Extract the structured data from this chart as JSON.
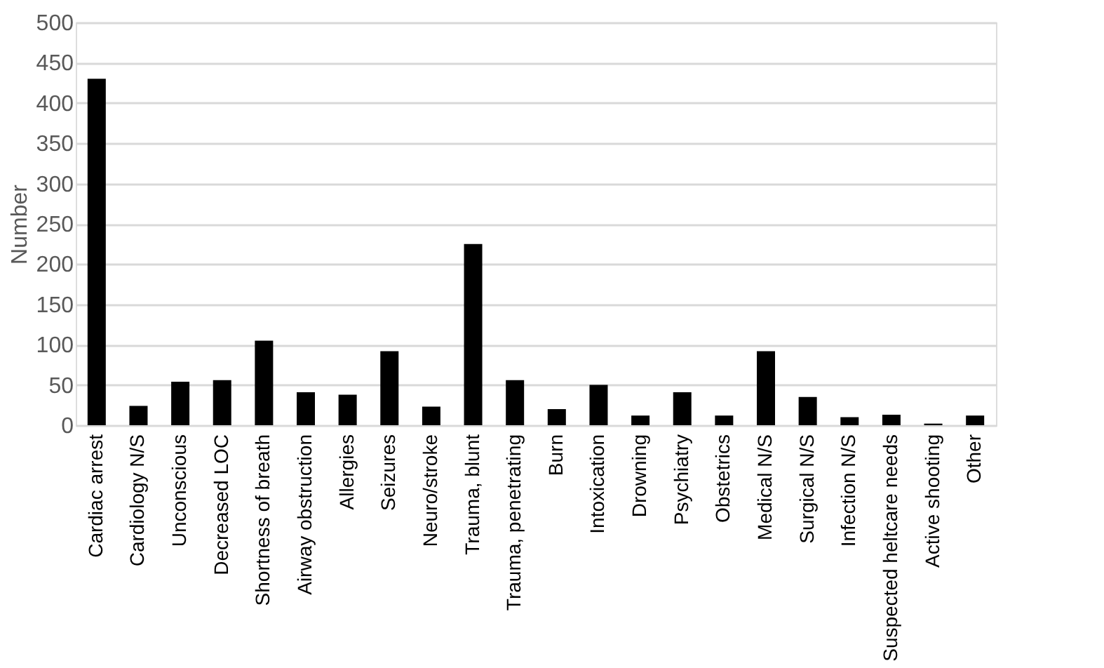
{
  "chart_data": {
    "type": "bar",
    "ylabel": "Number",
    "categories": [
      "Cardiac arrest",
      "Cardiology N/S",
      "Unconscious",
      "Decreased LOC",
      "Shortness of breath",
      "Airway obstruction",
      "Allergies",
      "Seizures",
      "Neuro/stroke",
      "Trauma, blunt",
      "Trauma, penetrating",
      "Burn",
      "Intoxication",
      "Drowning",
      "Psychiatry",
      "Obstetrics",
      "Medical N/S",
      "Surgical N/S",
      "Infection N/S",
      "Suspected heltcare needs",
      "Active shooting",
      "Other"
    ],
    "values": [
      430,
      24,
      54,
      56,
      105,
      41,
      38,
      92,
      23,
      225,
      56,
      20,
      50,
      12,
      41,
      12,
      92,
      35,
      10,
      13,
      2,
      12
    ],
    "color": "#000000",
    "ylim": [
      0,
      500
    ],
    "yticks": [
      0,
      50,
      100,
      150,
      200,
      250,
      300,
      350,
      400,
      450,
      500
    ],
    "grid": "y"
  }
}
